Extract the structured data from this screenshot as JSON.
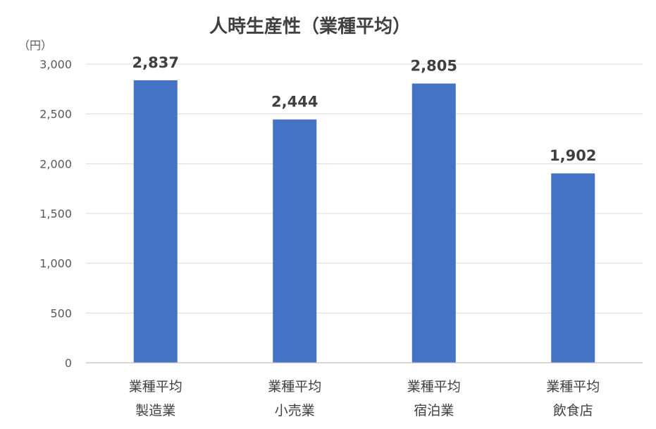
{
  "chart_data": {
    "type": "bar",
    "title": "人時生産性（業種平均）",
    "y_unit": "（円）",
    "categories": [
      [
        "業種平均",
        "製造業"
      ],
      [
        "業種平均",
        "小売業"
      ],
      [
        "業種平均",
        "宿泊業"
      ],
      [
        "業種平均",
        "飲食店"
      ]
    ],
    "values": [
      2837,
      2444,
      2805,
      1902
    ],
    "data_labels": [
      "2,837",
      "2,444",
      "2,805",
      "1,902"
    ],
    "ylim": [
      0,
      3000
    ],
    "yticks": [
      0,
      500,
      1000,
      1500,
      2000,
      2500,
      3000
    ],
    "ytick_labels": [
      "0",
      "500",
      "1,000",
      "1,500",
      "2,000",
      "2,500",
      "3,000"
    ],
    "grid": true,
    "legend": "none",
    "bar_color": "#4472C4"
  }
}
